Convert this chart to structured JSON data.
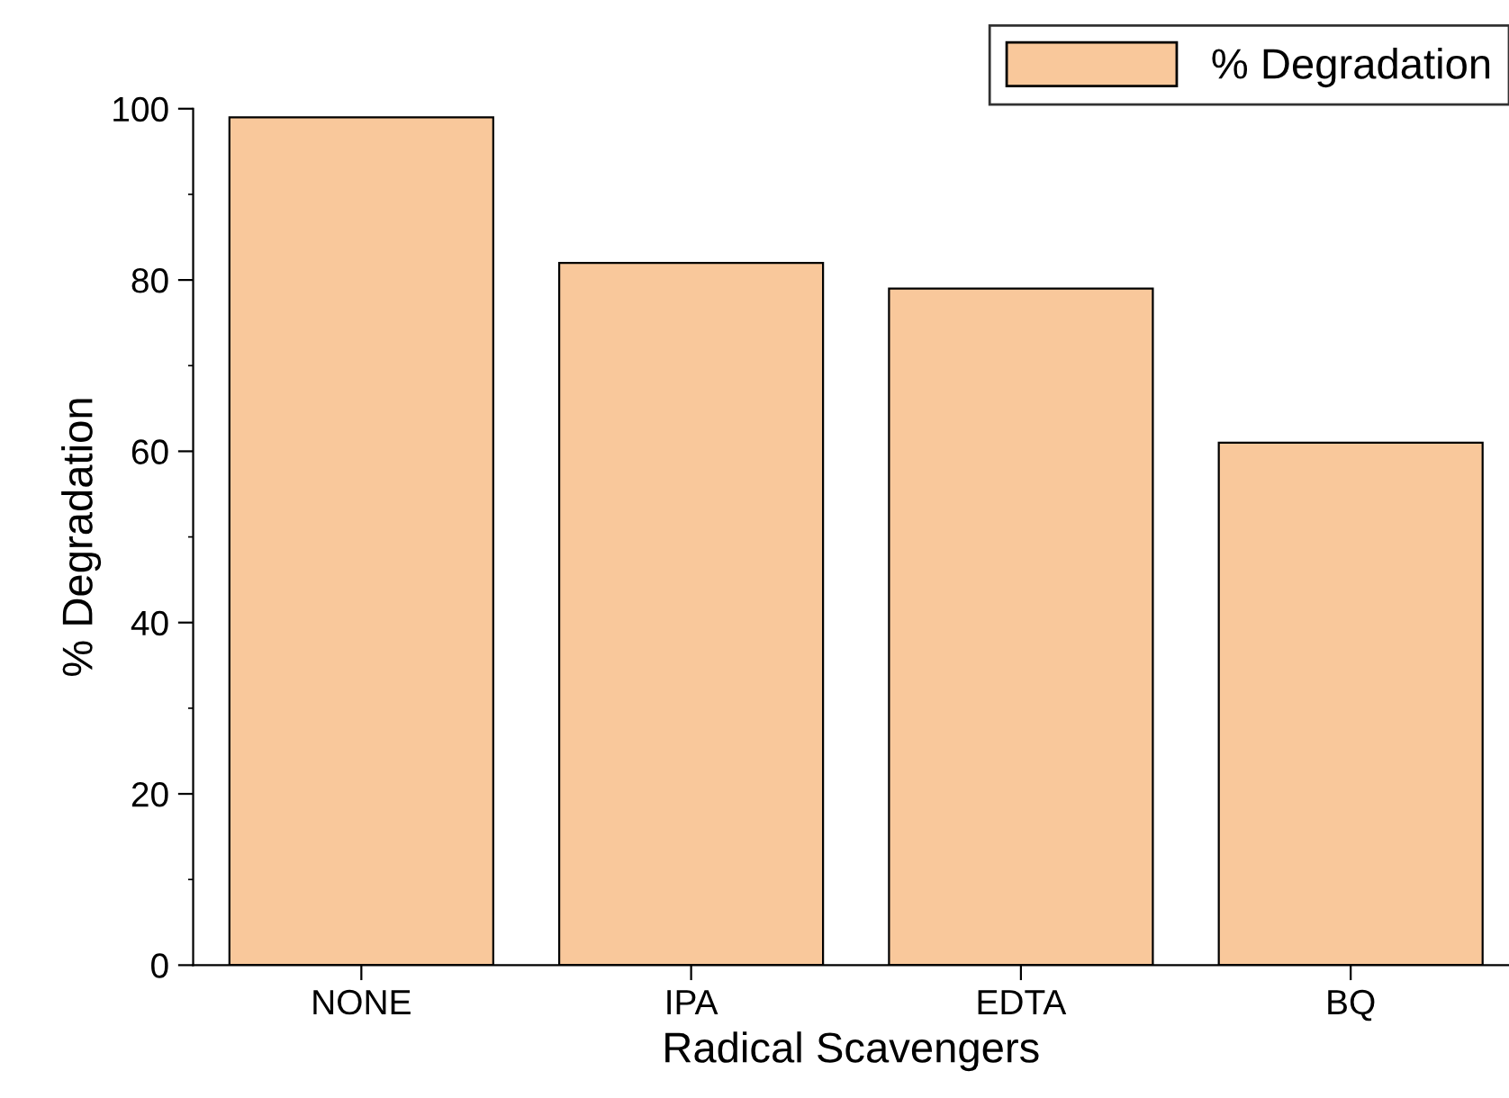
{
  "chart_data": {
    "type": "bar",
    "xlabel": "Radical Scavengers",
    "ylabel": "% Degradation",
    "categories": [
      "NONE",
      "IPA",
      "EDTA",
      "BQ"
    ],
    "series": [
      {
        "name": "% Degradation",
        "color": "#f9c89b",
        "values": [
          99,
          82,
          79,
          61
        ]
      }
    ],
    "ylim": [
      0,
      100
    ],
    "yticks": [
      0,
      20,
      40,
      60,
      80,
      100
    ],
    "grid": false,
    "legend": "top right"
  }
}
